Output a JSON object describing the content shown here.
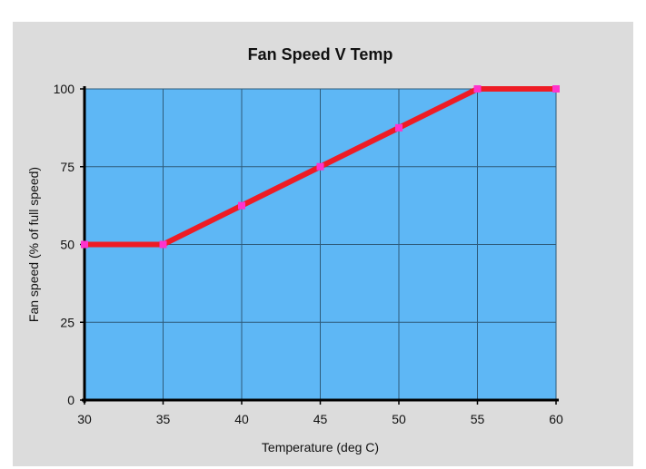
{
  "chart_data": {
    "type": "line",
    "title": "Fan Speed V Temp",
    "xlabel": "Temperature (deg C)",
    "ylabel": "Fan speed (% of full speed)",
    "x": [
      30,
      35,
      40,
      45,
      50,
      55,
      60
    ],
    "xlim": [
      30,
      60
    ],
    "ylim": [
      0,
      100
    ],
    "x_ticks": [
      30,
      35,
      40,
      45,
      50,
      55,
      60
    ],
    "y_ticks": [
      0,
      25,
      50,
      75,
      100
    ],
    "grid": true,
    "series": [
      {
        "values": [
          50,
          50,
          62.5,
          75,
          87.5,
          100,
          100
        ],
        "color": "#ee1c25",
        "marker_color": "#ff33cc"
      }
    ],
    "colors": {
      "panel_background": "#dcdcdc",
      "plot_background": "#5eb7f5",
      "grid": "#2e5b7a",
      "axis": "#000000"
    }
  }
}
